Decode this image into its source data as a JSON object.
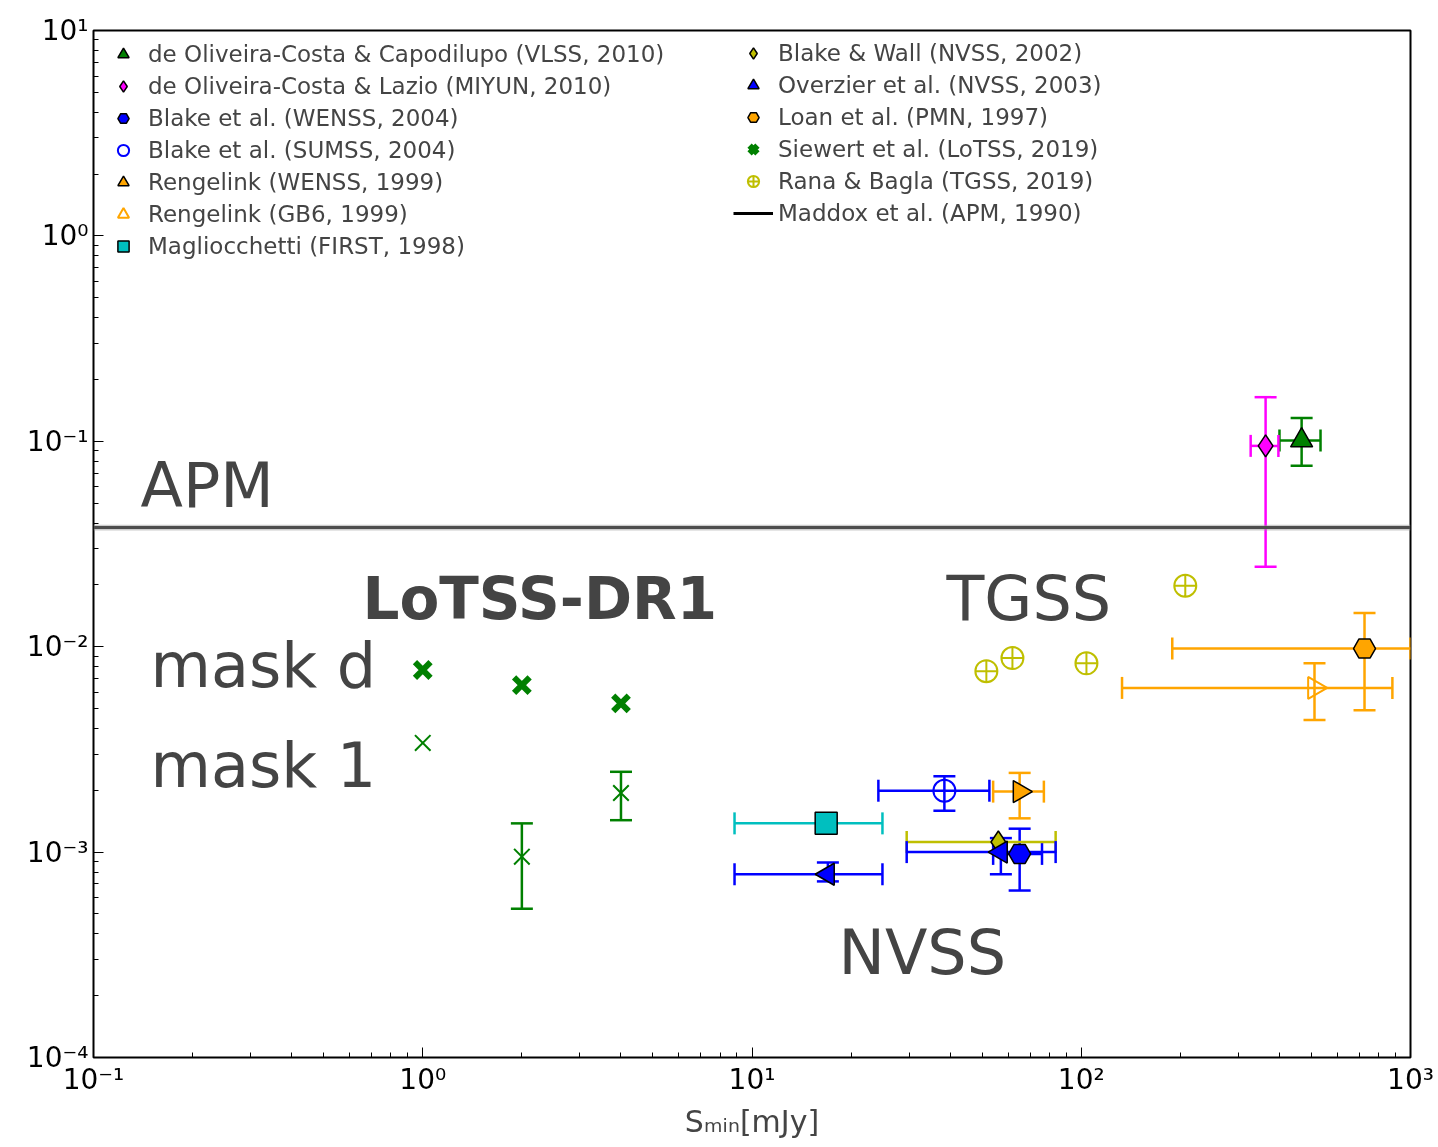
{
  "chart_data": {
    "type": "scatter",
    "xlabel": "Sₘᵢₙ[mJy]",
    "log": "xy",
    "grid": false,
    "legend": "top left",
    "xlim": [
      0.1,
      1000
    ],
    "ylim": [
      0.0001,
      10
    ],
    "xticks": [
      {
        "value": 0.1,
        "label": "10⁻¹"
      },
      {
        "value": 1,
        "label": "10⁰"
      },
      {
        "value": 10,
        "label": "10¹"
      },
      {
        "value": 100,
        "label": "10²"
      },
      {
        "value": 1000,
        "label": "10³"
      }
    ],
    "yticks": [
      {
        "value": 0.0001,
        "label": "10⁻⁴"
      },
      {
        "value": 0.001,
        "label": "10⁻³"
      },
      {
        "value": 0.01,
        "label": "10⁻²"
      },
      {
        "value": 0.1,
        "label": "10⁻¹"
      },
      {
        "value": 1,
        "label": "10⁰"
      },
      {
        "value": 10,
        "label": "10¹"
      }
    ],
    "series": [
      {
        "name": "de Oliveira-Costa & Capodilupo (VLSS, 2010)",
        "color": "#008000",
        "marker": "triangle",
        "x": [
          467
        ],
        "values": [
          0.101
        ],
        "errors": [
          [
            0.076,
            0.13
          ]
        ],
        "xerrors": [
          [
            400,
            533
          ]
        ]
      },
      {
        "name": "de Oliveira-Costa & Lazio (MIYUN, 2010)",
        "color": "#ff00ff",
        "marker": "diamond",
        "x": [
          363
        ],
        "values": [
          0.095
        ],
        "errors": [
          [
            0.0245,
            0.164
          ]
        ],
        "xerrors": [
          [
            327,
            397
          ]
        ]
      },
      {
        "name": "Blake et al. (WENSS, 2004)",
        "color": "#0000ff",
        "x": [
          65
        ],
        "values": [
          0.00098
        ],
        "errors": [
          [
            0.00065,
            0.0013
          ]
        ],
        "xerrors": [
          [
            54,
            76
          ]
        ]
      },
      {
        "name": "Blake et al. (SUMSS, 2004)",
        "color": "#0000ff",
        "marker": "circle open",
        "x": [
          38.4
        ],
        "values": [
          0.00199
        ],
        "errors": [
          [
            0.00159,
            0.00234
          ]
        ],
        "xerrors": [
          [
            24.2,
            52.6
          ]
        ]
      },
      {
        "name": "Rengelink (WENSS, 1999)",
        "color": "#ffa500",
        "marker": "triangle_right",
        "x": [
          65
        ],
        "values": [
          0.00197
        ],
        "errors": [
          [
            0.00146,
            0.00243
          ]
        ],
        "xerrors": [
          [
            54,
            77
          ]
        ]
      },
      {
        "name": "Rengelink (GB6, 1999)",
        "color": "#ffa500",
        "marker": "triangle_right open",
        "x": [
          511
        ],
        "values": [
          0.0063
        ],
        "errors": [
          [
            0.0044,
            0.0083
          ]
        ],
        "xerrors": [
          [
            133,
            881
          ]
        ]
      },
      {
        "name": "Magliocchetti (FIRST, 1998)",
        "color": "#00bfbf",
        "marker": "square",
        "x": [
          16.8
        ],
        "values": [
          0.00138
        ],
        "xerrors": [
          [
            8.85,
            24.9
          ]
        ]
      },
      {
        "name": "Blake & Wall (NVSS, 2002)",
        "color": "#bfbf00",
        "marker": "diamond",
        "x": [
          56
        ],
        "values": [
          0.00112
        ],
        "xerrors": [
          [
            29.5,
            83.6
          ]
        ]
      },
      {
        "name": "Overzier et al. (NVSS, 2003)",
        "color": "#0000ff",
        "marker": "triangle_left",
        "x": [
          17,
          57
        ],
        "values": [
          0.00078,
          0.001
        ],
        "errors": [
          [
            0.00072,
            0.00089
          ],
          [
            0.00078,
            0.00117
          ]
        ],
        "xerrors": [
          [
            8.85,
            24.9
          ],
          [
            29.5,
            83.6
          ]
        ]
      },
      {
        "name": "Loan et al. (PMN, 1997)",
        "color": "#ffa500",
        "x": [
          725
        ],
        "values": [
          0.0098
        ],
        "errors": [
          [
            0.0049,
            0.0146
          ]
        ],
        "xerrors": [
          [
            189,
            1000
          ]
        ]
      },
      {
        "name": "Siewert et al. (LoTSS, 2019)",
        "color": "#008000",
        "marker": "x",
        "x": [
          1,
          2,
          4
        ],
        "values": [
          0.0077,
          0.0065,
          0.0053
        ]
      },
      {
        "name": "Rana & Bagla (TGSS, 2019)",
        "color": "#bfbf00",
        "marker": "circle_cross open",
        "x": [
          51.5,
          61.8,
          103.7,
          207
        ],
        "values": [
          0.0076,
          0.0088,
          0.0083,
          0.0198
        ]
      },
      {
        "name": "Maddox et al. (APM, 1990)",
        "type": "line",
        "color": "#000000",
        "x": [
          0.1,
          1000
        ],
        "values": [
          0.038,
          0.038
        ],
        "lower": [
          0.0368,
          0.0368
        ],
        "upper": [
          0.0392,
          0.0392
        ]
      },
      {
        "color": "#008000",
        "marker": "cross",
        "x": [
          1,
          2,
          4
        ],
        "values": [
          0.0034,
          0.00095,
          0.00194
        ],
        "errors": [
          null,
          [
            0.00053,
            0.00138
          ],
          [
            0.00143,
            0.00246
          ]
        ]
      }
    ],
    "annotations": [
      "APM",
      "LoTSS-DR1",
      "TGSS",
      "mask d",
      "mask 1",
      "NVSS"
    ]
  }
}
